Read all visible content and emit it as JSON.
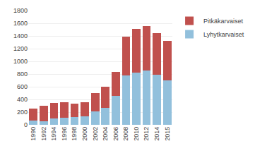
{
  "chart_data": {
    "type": "bar",
    "stacked": true,
    "categories": [
      "1990",
      "1992",
      "1994",
      "1996",
      "1998",
      "2000",
      "2002",
      "2004",
      "2006",
      "2008",
      "2010",
      "2012",
      "2014",
      "2015"
    ],
    "series": [
      {
        "name": "Lyhytkarvaiset",
        "color": "#92C0DC",
        "values": [
          65,
          55,
          95,
          115,
          120,
          135,
          215,
          265,
          460,
          775,
          825,
          860,
          785,
          700
        ]
      },
      {
        "name": "Pitkäkarvaiset",
        "color": "#C0504D",
        "values": [
          190,
          240,
          245,
          245,
          215,
          220,
          285,
          340,
          370,
          610,
          690,
          700,
          665,
          625
        ]
      }
    ],
    "ylim": [
      0,
      1800
    ],
    "yticks": [
      0,
      200,
      400,
      600,
      800,
      1000,
      1200,
      1400,
      1600,
      1800
    ],
    "grid": true,
    "legend": "right"
  }
}
